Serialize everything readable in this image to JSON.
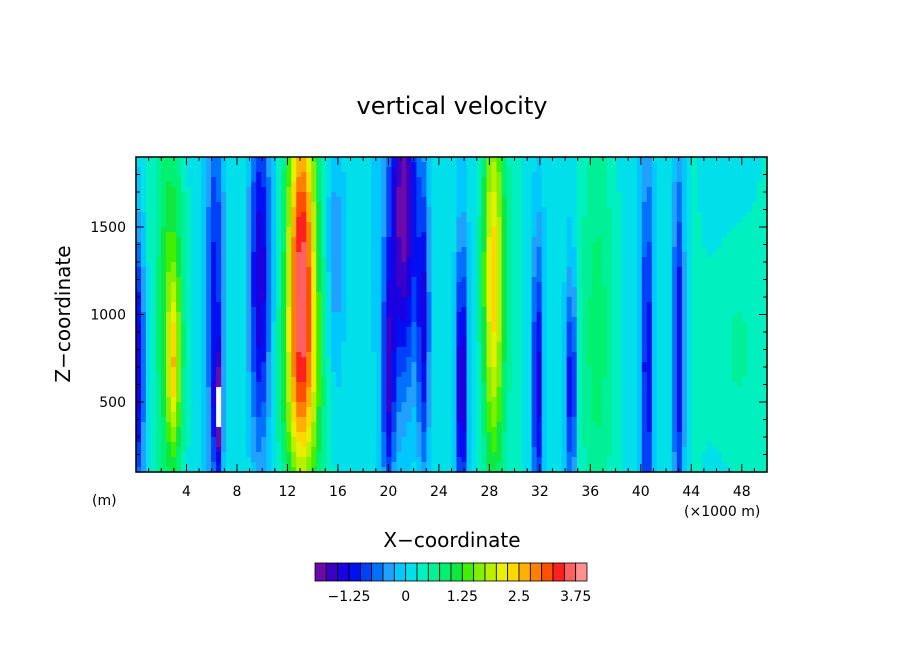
{
  "chart_data": {
    "type": "heatmap",
    "title": "vertical velocity",
    "xlabel": "X−coordinate",
    "ylabel": "Z−coordinate",
    "x_unit_left": "(m)",
    "x_unit_right": "(×1000 m)",
    "xlim": [
      0,
      50
    ],
    "ylim": [
      100,
      1900
    ],
    "x_ticks": [
      4,
      8,
      12,
      16,
      20,
      24,
      28,
      32,
      36,
      40,
      44,
      48
    ],
    "y_ticks": [
      500,
      1000,
      1500
    ],
    "colorbar": {
      "range": [
        -2.0,
        4.0
      ],
      "levels": 24,
      "colors": [
        "#6b0aa8",
        "#3a00c8",
        "#1a00e0",
        "#0010f0",
        "#0040f8",
        "#0070ff",
        "#20a0ff",
        "#00c8ff",
        "#00e0e8",
        "#00f0c0",
        "#00f098",
        "#00f070",
        "#10e840",
        "#40f000",
        "#80f000",
        "#b8f000",
        "#e8f000",
        "#ffd800",
        "#ffb000",
        "#ff8000",
        "#ff5000",
        "#ff2020",
        "#ff6060",
        "#ff9090"
      ],
      "tick_labels": [
        "−1.25",
        "0",
        "1.25",
        "2.5",
        "3.75"
      ],
      "tick_values": [
        -1.25,
        0,
        1.25,
        2.5,
        3.75
      ]
    },
    "features": [
      {
        "x": 0.2,
        "w": 0.5,
        "amp": -1.6,
        "zc": 700,
        "zs": 600
      },
      {
        "x": 2.8,
        "w": 1.1,
        "amp": 1.2,
        "zc": 1000,
        "zs": 900
      },
      {
        "x": 3.0,
        "w": 0.5,
        "amp": 1.2,
        "zc": 700,
        "zs": 350
      },
      {
        "x": 6.3,
        "w": 0.7,
        "amp": -1.2,
        "zc": 1100,
        "zs": 900
      },
      {
        "x": 6.5,
        "w": 0.3,
        "amp": -1.8,
        "zc": 450,
        "zs": 250
      },
      {
        "x": 9.8,
        "w": 0.9,
        "amp": -1.7,
        "zc": 1200,
        "zs": 850
      },
      {
        "x": 13.1,
        "w": 1.2,
        "amp": 3.4,
        "zc": 1300,
        "zs": 850
      },
      {
        "x": 13.1,
        "w": 1.8,
        "amp": 1.0,
        "zc": 500,
        "zs": 500
      },
      {
        "x": 15.8,
        "w": 0.8,
        "amp": -0.7,
        "zc": 1300,
        "zs": 700
      },
      {
        "x": 21.2,
        "w": 1.2,
        "amp": -2.1,
        "zc": 1600,
        "zs": 800
      },
      {
        "x": 20.0,
        "w": 0.5,
        "amp": -1.4,
        "zc": 600,
        "zs": 500
      },
      {
        "x": 22.8,
        "w": 0.5,
        "amp": -1.4,
        "zc": 900,
        "zs": 700
      },
      {
        "x": 25.8,
        "w": 0.4,
        "amp": -1.8,
        "zc": 600,
        "zs": 600
      },
      {
        "x": 28.3,
        "w": 0.9,
        "amp": 2.2,
        "zc": 1200,
        "zs": 900
      },
      {
        "x": 31.8,
        "w": 0.4,
        "amp": -1.6,
        "zc": 600,
        "zs": 650
      },
      {
        "x": 34.5,
        "w": 0.4,
        "amp": -1.5,
        "zc": 600,
        "zs": 500
      },
      {
        "x": 36.5,
        "w": 1.5,
        "amp": 0.6,
        "zc": 900,
        "zs": 900
      },
      {
        "x": 40.5,
        "w": 0.4,
        "amp": -1.4,
        "zc": 700,
        "zs": 900
      },
      {
        "x": 43.0,
        "w": 0.5,
        "amp": -1.5,
        "zc": 800,
        "zs": 900
      },
      {
        "x": 47.5,
        "w": 2.0,
        "amp": 0.5,
        "zc": 800,
        "zs": 600
      }
    ]
  }
}
